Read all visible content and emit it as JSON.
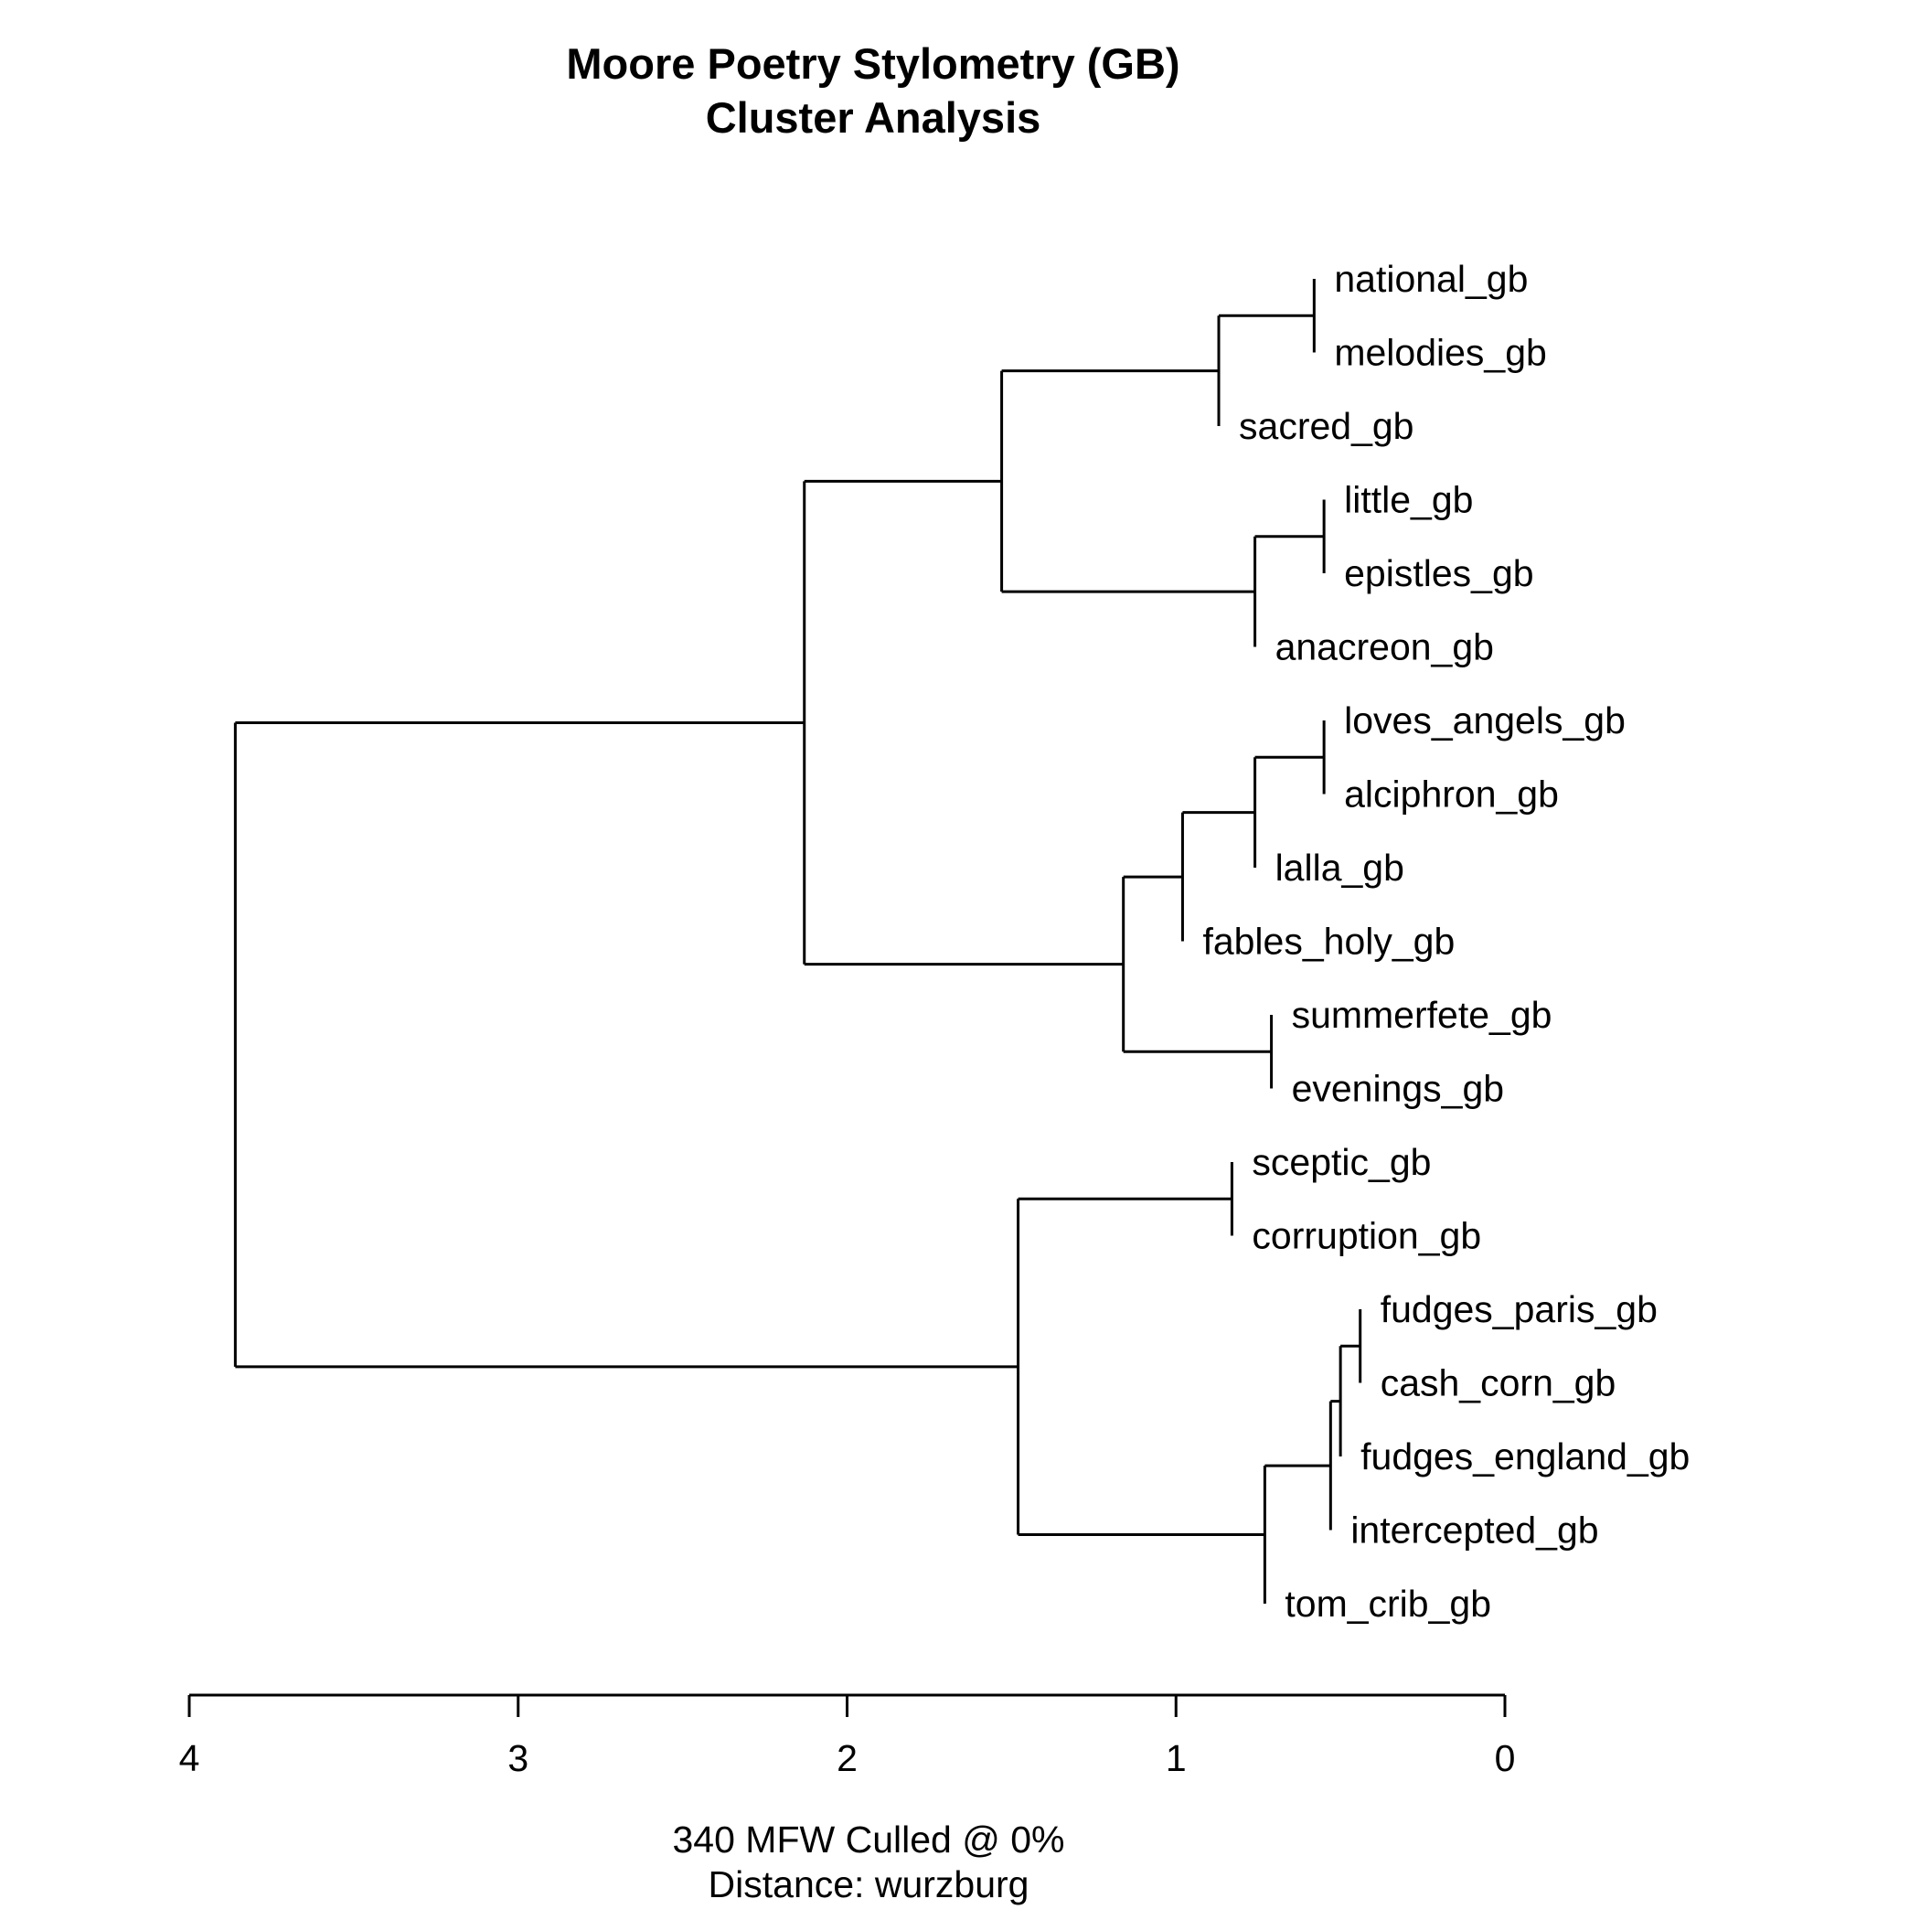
{
  "chart_data": {
    "type": "dendrogram",
    "title": [
      "Moore Poetry Stylometry (GB)",
      "Cluster Analysis"
    ],
    "subtitle": [
      "340 MFW  Culled @ 0%",
      "Distance: wurzburg"
    ],
    "xlim": [
      4,
      0
    ],
    "ticks": [
      4,
      3,
      2,
      1,
      0
    ],
    "leaves": [
      "national_gb",
      "melodies_gb",
      "sacred_gb",
      "little_gb",
      "epistles_gb",
      "anacreon_gb",
      "loves_angels_gb",
      "alciphron_gb",
      "lalla_gb",
      "fables_holy_gb",
      "summerfete_gb",
      "evenings_gb",
      "sceptic_gb",
      "corruption_gb",
      "fudges_paris_gb",
      "cash_corn_gb",
      "fudges_england_gb",
      "intercepted_gb",
      "tom_crib_gb"
    ],
    "merges": [
      {
        "children": [
          "national_gb",
          "melodies_gb"
        ],
        "height": 0.58
      },
      {
        "children": [
          1,
          "sacred_gb"
        ],
        "height": 0.87
      },
      {
        "children": [
          "little_gb",
          "epistles_gb"
        ],
        "height": 0.55
      },
      {
        "children": [
          3,
          "anacreon_gb"
        ],
        "height": 0.76
      },
      {
        "children": [
          2,
          4
        ],
        "height": 1.53
      },
      {
        "children": [
          "loves_angels_gb",
          "alciphron_gb"
        ],
        "height": 0.55
      },
      {
        "children": [
          6,
          "lalla_gb"
        ],
        "height": 0.76
      },
      {
        "children": [
          7,
          "fables_holy_gb"
        ],
        "height": 0.98
      },
      {
        "children": [
          "summerfete_gb",
          "evenings_gb"
        ],
        "height": 0.71
      },
      {
        "children": [
          8,
          9
        ],
        "height": 1.16
      },
      {
        "children": [
          5,
          10
        ],
        "height": 2.13
      },
      {
        "children": [
          "sceptic_gb",
          "corruption_gb"
        ],
        "height": 0.83
      },
      {
        "children": [
          "fudges_paris_gb",
          "cash_corn_gb"
        ],
        "height": 0.44
      },
      {
        "children": [
          13,
          "fudges_england_gb"
        ],
        "height": 0.5
      },
      {
        "children": [
          14,
          "intercepted_gb"
        ],
        "height": 0.53
      },
      {
        "children": [
          15,
          "tom_crib_gb"
        ],
        "height": 0.73
      },
      {
        "children": [
          12,
          16
        ],
        "height": 1.48
      },
      {
        "children": [
          11,
          17
        ],
        "height": 3.86
      }
    ]
  }
}
